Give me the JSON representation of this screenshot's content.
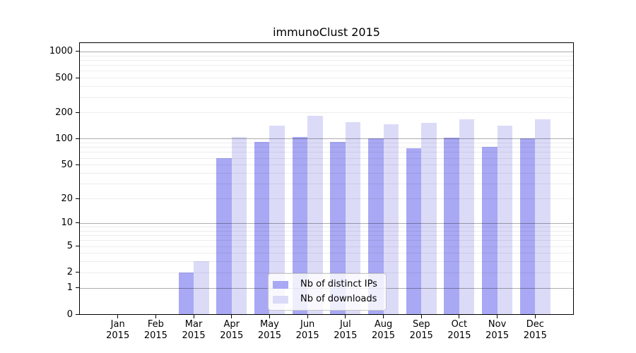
{
  "chart_data": {
    "type": "bar",
    "title": "immunoClust 2015",
    "x_categories": [
      {
        "month": "Jan",
        "year": "2015"
      },
      {
        "month": "Feb",
        "year": "2015"
      },
      {
        "month": "Mar",
        "year": "2015"
      },
      {
        "month": "Apr",
        "year": "2015"
      },
      {
        "month": "May",
        "year": "2015"
      },
      {
        "month": "Jun",
        "year": "2015"
      },
      {
        "month": "Jul",
        "year": "2015"
      },
      {
        "month": "Aug",
        "year": "2015"
      },
      {
        "month": "Sep",
        "year": "2015"
      },
      {
        "month": "Oct",
        "year": "2015"
      },
      {
        "month": "Nov",
        "year": "2015"
      },
      {
        "month": "Dec",
        "year": "2015"
      }
    ],
    "series": [
      {
        "name": "Nb of distinct IPs",
        "color": "#a8a8f4",
        "values": [
          0,
          0,
          2,
          60,
          92,
          104,
          92,
          100,
          77,
          102,
          81,
          100
        ]
      },
      {
        "name": "Nb of downloads",
        "color": "#dbdbf8",
        "values": [
          0,
          0,
          3,
          105,
          140,
          185,
          154,
          147,
          152,
          168,
          141,
          168
        ]
      }
    ],
    "y_axis": {
      "scale": "log10(1+value)",
      "tick_values": [
        0,
        1,
        2,
        5,
        10,
        20,
        50,
        100,
        200,
        500,
        1000
      ],
      "tick_labels": [
        "0",
        "1",
        "2",
        "5",
        "10",
        "20",
        "50",
        "100",
        "200",
        "500",
        "1000"
      ],
      "major_gridline_values": [
        1,
        10,
        100,
        1000
      ],
      "minor_gridline_values": [
        2,
        3,
        4,
        5,
        6,
        7,
        8,
        9,
        20,
        30,
        40,
        50,
        60,
        70,
        80,
        90,
        200,
        300,
        400,
        500,
        600,
        700,
        800,
        900
      ],
      "range": [
        0,
        1000
      ]
    },
    "legend": {
      "position": "lower center",
      "entries": [
        "Nb of distinct IPs",
        "Nb of downloads"
      ]
    },
    "colors": {
      "major_gridline": "rgba(0,0,0,0.32)",
      "minor_gridline": "rgba(0,0,0,0.07)",
      "axis": "#000000",
      "background": "#ffffff"
    }
  }
}
